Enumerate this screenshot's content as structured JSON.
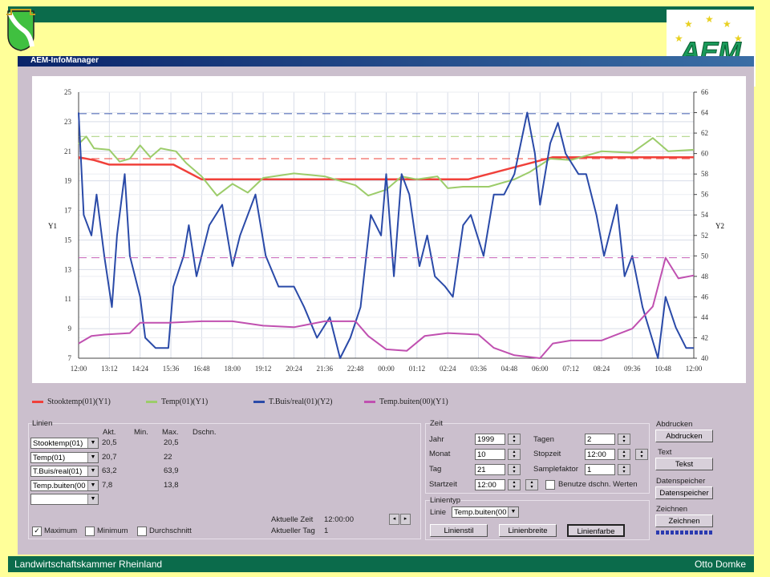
{
  "slide": {
    "footer_left": "Landwirtschaftskammer Rheinland",
    "footer_right": "Otto Domke",
    "logo_text": "AEM"
  },
  "window": {
    "title": "AEM-InfoManager"
  },
  "colors": {
    "stooktemp": "#f0403a",
    "temp": "#9ccc6a",
    "tbuis": "#2a4aa8",
    "buiten": "#c050b0"
  },
  "chart_data": {
    "type": "line",
    "y1label": "Y1",
    "y2label": "Y2",
    "y1lim": [
      7,
      25
    ],
    "y1ticks": [
      "7",
      "9",
      "11",
      "13",
      "15",
      "17",
      "19",
      "21",
      "23",
      "25"
    ],
    "y2lim": [
      40,
      66
    ],
    "y2ticks": [
      "40",
      "42",
      "44",
      "46",
      "48",
      "50",
      "52",
      "54",
      "56",
      "58",
      "60",
      "62",
      "64",
      "66"
    ],
    "xlim_hours": [
      0,
      24
    ],
    "xticks": [
      "12:00",
      "13:12",
      "14:24",
      "15:36",
      "16:48",
      "18:00",
      "19:12",
      "20:24",
      "21:36",
      "22:48",
      "00:00",
      "01:12",
      "02:24",
      "03:36",
      "04:48",
      "06:00",
      "07:12",
      "08:24",
      "09:36",
      "10:48",
      "12:00"
    ],
    "series": [
      {
        "name": "Stooktemp(01)(Y1)",
        "key": "stooktemp",
        "axis": "y1",
        "max": 20.5,
        "x": [
          0,
          0.6,
          1.2,
          3.7,
          4.8,
          15.2,
          18.5,
          24
        ],
        "y": [
          20.6,
          20.4,
          20.1,
          20.1,
          19.1,
          19.1,
          20.6,
          20.6
        ]
      },
      {
        "name": "Temp(01)(Y1)",
        "key": "temp",
        "axis": "y1",
        "max": 22,
        "x": [
          0,
          0.3,
          0.6,
          1.2,
          1.6,
          2,
          2.4,
          2.8,
          3.2,
          3.8,
          4.2,
          4.8,
          5.4,
          6,
          6.6,
          7.2,
          8.4,
          9.6,
          10.8,
          11.3,
          12,
          12.6,
          13.2,
          14,
          14.4,
          15,
          16,
          17,
          17.6,
          18.4,
          19.2,
          20.4,
          21.6,
          22.4,
          23,
          24
        ],
        "y": [
          21.5,
          22,
          21.2,
          21.1,
          20.3,
          20.5,
          21.4,
          20.6,
          21.2,
          21,
          20.2,
          19.3,
          18,
          18.8,
          18.2,
          19.2,
          19.5,
          19.3,
          18.7,
          18,
          18.4,
          19.3,
          19.1,
          19.3,
          18.5,
          18.6,
          18.6,
          19.1,
          19.6,
          20.5,
          20.4,
          21,
          20.9,
          21.9,
          21,
          21.1
        ]
      },
      {
        "name": "T.Buis/real(01)(Y2)",
        "key": "tbuis",
        "axis": "y2",
        "max": 63.9,
        "x": [
          0,
          0.2,
          0.5,
          0.7,
          1,
          1.3,
          1.5,
          1.8,
          2,
          2.4,
          2.6,
          3,
          3.5,
          3.7,
          4.1,
          4.3,
          4.6,
          5.1,
          5.6,
          6,
          6.3,
          6.9,
          7.3,
          7.8,
          8.4,
          8.8,
          9.3,
          9.8,
          10.2,
          10.6,
          11,
          11.4,
          11.8,
          12,
          12.3,
          12.6,
          12.9,
          13.3,
          13.6,
          13.9,
          14.3,
          14.6,
          15,
          15.3,
          15.8,
          16.2,
          16.6,
          17,
          17.5,
          17.8,
          18,
          18.4,
          18.7,
          19,
          19.5,
          19.8,
          20.2,
          20.5,
          21,
          21.3,
          21.6,
          22,
          22.6,
          22.9,
          23.3,
          23.7,
          24
        ],
        "y": [
          64,
          54,
          52,
          56,
          50,
          45,
          52,
          58,
          50,
          46,
          42,
          41,
          41,
          47,
          50,
          53,
          48,
          53,
          55,
          49,
          52,
          56,
          50,
          47,
          47,
          45,
          42,
          44,
          40,
          42,
          45,
          54,
          52,
          58,
          48,
          58,
          56,
          49,
          52,
          48,
          47,
          46,
          53,
          54,
          50,
          56,
          56,
          58,
          64,
          60,
          55,
          61,
          63,
          60,
          58,
          58,
          54,
          50,
          55,
          48,
          50,
          45,
          40,
          46,
          43,
          41,
          41
        ]
      },
      {
        "name": "Temp.buiten(00)(Y1)",
        "key": "buiten",
        "axis": "y1",
        "max": 13.8,
        "x": [
          0,
          0.5,
          1,
          2,
          2.4,
          3.5,
          4.8,
          6,
          7.2,
          8.4,
          9.6,
          10.8,
          11.3,
          12,
          12.8,
          13.5,
          14.4,
          15.6,
          16.2,
          17,
          18,
          18.5,
          19.2,
          20.4,
          21.6,
          22.4,
          22.9,
          23.4,
          24
        ],
        "y": [
          8,
          8.5,
          8.6,
          8.7,
          9.4,
          9.4,
          9.5,
          9.5,
          9.2,
          9.1,
          9.5,
          9.5,
          8.5,
          7.6,
          7.5,
          8.5,
          8.7,
          8.6,
          7.7,
          7.2,
          7,
          8,
          8.2,
          8.2,
          9,
          10.5,
          13.8,
          12.4,
          12.6
        ]
      }
    ]
  },
  "linien": {
    "title": "Linien",
    "headers": [
      "Akt.",
      "Min.",
      "Max.",
      "Dschn."
    ],
    "rows": [
      {
        "name": "Stooktemp(01)",
        "akt": "20,5",
        "max": "20,5"
      },
      {
        "name": "Temp(01)",
        "akt": "20,7",
        "max": "22"
      },
      {
        "name": "T.Buis/real(01)",
        "akt": "63,2",
        "max": "63,9"
      },
      {
        "name": "Temp.buiten(00",
        "akt": "7,8",
        "max": "13,8"
      },
      {
        "name": "",
        "akt": "",
        "max": ""
      }
    ],
    "checkboxes": [
      {
        "label": "Maximum",
        "checked": true
      },
      {
        "label": "Minimum",
        "checked": false
      },
      {
        "label": "Durchschnitt",
        "checked": false
      }
    ],
    "aktuelle_zeit_label": "Aktuelle Zeit",
    "aktuelle_zeit": "12:00:00",
    "aktueller_tag_label": "Aktueller Tag",
    "aktueller_tag": "1"
  },
  "zeit": {
    "title": "Zeit",
    "jahr_label": "Jahr",
    "jahr": "1999",
    "monat_label": "Monat",
    "monat": "10",
    "tag_label": "Tag",
    "tag": "21",
    "startzeit_label": "Startzeit",
    "startzeit": "12:00",
    "tagen_label": "Tagen",
    "tagen": "2",
    "stopzeit_label": "Stopzeit",
    "stopzeit": "12:00",
    "samplefaktor_label": "Samplefaktor",
    "samplefaktor": "1",
    "benutze_label": "Benutze dschn. Werten"
  },
  "linientyp": {
    "title": "Linientyp",
    "linie_label": "Linie",
    "linie": "Temp.buiten(00",
    "linienstil": "Linienstil",
    "linienbreite": "Linienbreite",
    "linienfarbe": "Linienfarbe"
  },
  "side": {
    "abdrucken_title": "Abdrucken",
    "abdrucken": "Abdrucken",
    "text_title": "Text",
    "tekst": "Tekst",
    "datenspeicher_title": "Datenspeicher",
    "datenspeicher": "Datenspeicher",
    "zeichnen_title": "Zeichnen",
    "zeichnen": "Zeichnen"
  }
}
